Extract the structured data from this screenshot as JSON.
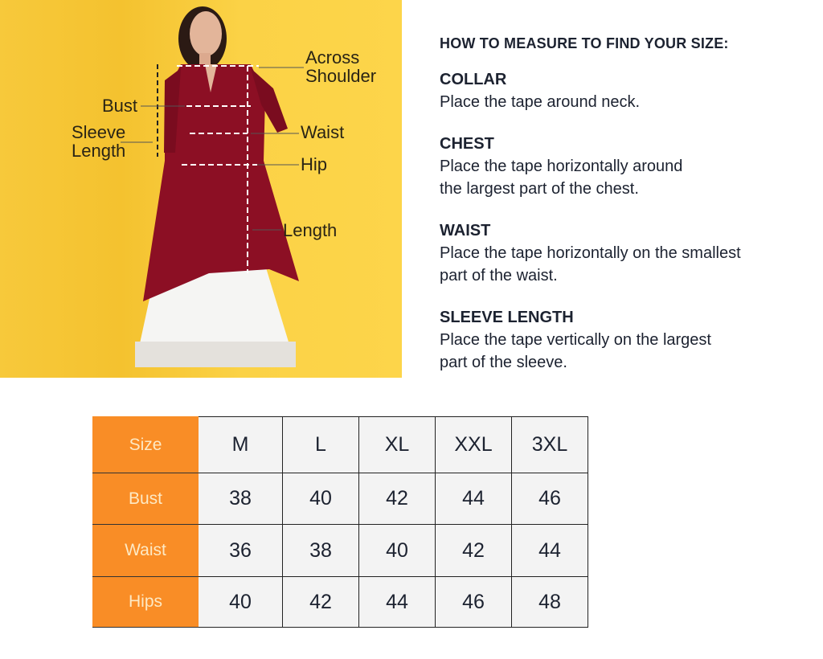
{
  "photo": {
    "labels": {
      "across_shoulder": [
        "Across",
        "Shoulder"
      ],
      "bust": "Bust",
      "sleeve_length": [
        "Sleeve",
        "Length"
      ],
      "waist": "Waist",
      "hip": "Hip",
      "length": "Length"
    },
    "colors": {
      "background": "#fbd043",
      "kurta": "#8c0f24",
      "skirt": "#f5f5f3"
    }
  },
  "guide": {
    "heading": "HOW TO MEASURE TO FIND YOUR SIZE:",
    "sections": [
      {
        "title": "COLLAR",
        "lines": [
          "Place the tape around neck."
        ]
      },
      {
        "title": "CHEST",
        "lines": [
          "Place the tape horizontally around",
          "the largest part of the chest."
        ]
      },
      {
        "title": "WAIST",
        "lines": [
          "Place the tape horizontally on the smallest",
          "part of the waist."
        ]
      },
      {
        "title": "SLEEVE LENGTH",
        "lines": [
          "Place the tape vertically on the largest",
          "part of the sleeve."
        ]
      }
    ]
  },
  "size_table": {
    "header_color": "#f98d26",
    "rows": [
      {
        "label": "Size",
        "values": [
          "M",
          "L",
          "XL",
          "XXL",
          "3XL"
        ]
      },
      {
        "label": "Bust",
        "values": [
          "38",
          "40",
          "42",
          "44",
          "46"
        ]
      },
      {
        "label": "Waist",
        "values": [
          "36",
          "38",
          "40",
          "42",
          "44"
        ]
      },
      {
        "label": "Hips",
        "values": [
          "40",
          "42",
          "44",
          "46",
          "48"
        ]
      }
    ]
  }
}
